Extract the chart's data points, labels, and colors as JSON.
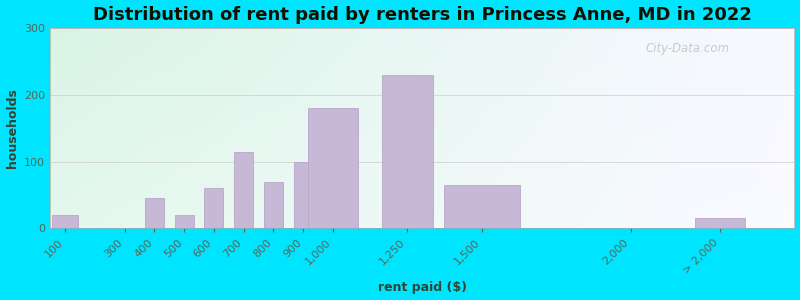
{
  "title": "Distribution of rent paid by renters in Princess Anne, MD in 2022",
  "xlabel": "rent paid ($)",
  "ylabel": "households",
  "bar_color": "#c8b8d8",
  "bar_edge_color": "#b8a8c8",
  "background_outer": "#00e5ff",
  "ylim": [
    0,
    300
  ],
  "yticks": [
    0,
    100,
    200,
    300
  ],
  "tick_color": "#556655",
  "label_color": "#334433",
  "title_fontsize": 13,
  "axis_label_fontsize": 9,
  "tick_fontsize": 8,
  "watermark_text": "City-Data.com",
  "watermark_color": "#c0c8c0",
  "categories": [
    "100",
    "300",
    "400",
    "500",
    "600",
    "700",
    "800",
    "900",
    "1,000",
    "1,250",
    "1,500",
    "2,000",
    "> 2,000"
  ],
  "x_values": [
    100,
    300,
    400,
    500,
    600,
    700,
    800,
    900,
    1000,
    1250,
    1500,
    2000,
    2300
  ],
  "bar_widths": [
    100,
    50,
    75,
    75,
    75,
    75,
    75,
    75,
    200,
    200,
    300,
    200,
    200
  ],
  "values": [
    20,
    0,
    45,
    20,
    60,
    115,
    70,
    100,
    180,
    230,
    65,
    0,
    15
  ],
  "tick_positions": [
    100,
    300,
    400,
    500,
    600,
    700,
    800,
    900,
    1000,
    1250,
    1500,
    2000,
    2300
  ],
  "tick_labels": [
    "100",
    "300",
    "400",
    "500",
    "600",
    "700",
    "800",
    "900",
    "1,000",
    "1,250",
    "1,500",
    "2,000",
    "> 2,000"
  ],
  "xlim": [
    50,
    2550
  ]
}
